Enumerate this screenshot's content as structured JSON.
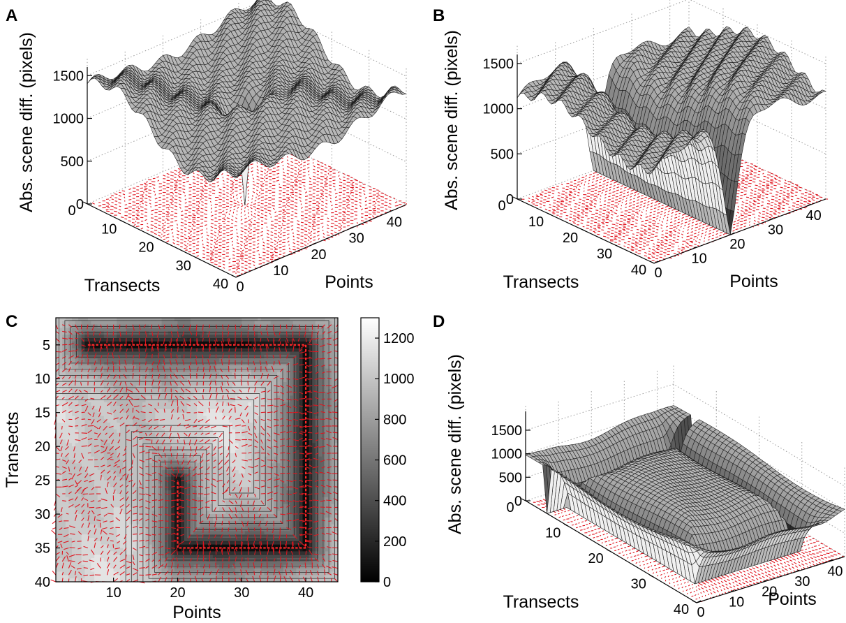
{
  "chart_data": [
    {
      "panel": "A",
      "type": "surface",
      "zlabel": "Abs. scene diff. (pixels)",
      "xlabel": "Transects",
      "ylabel": "Points",
      "x_ticks": [
        "0",
        "10",
        "20",
        "30",
        "40"
      ],
      "y_ticks": [
        "0",
        "10",
        "20",
        "30",
        "40"
      ],
      "z_ticks": [
        "0",
        "500",
        "1000",
        "1500"
      ],
      "xlim": [
        0,
        40
      ],
      "ylim": [
        0,
        45
      ],
      "zlim": [
        0,
        1600
      ],
      "surface": {
        "shape": "single funnel",
        "baseline": 1200,
        "min_value": 0,
        "min_at": {
          "transect": 20,
          "point": 22
        }
      },
      "quiver": "red arrows on the floor converging to the minimum"
    },
    {
      "panel": "B",
      "type": "surface",
      "zlabel": "Abs. scene diff. (pixels)",
      "xlabel": "Transects",
      "ylabel": "Points",
      "x_ticks": [
        "0",
        "10",
        "20",
        "30",
        "40"
      ],
      "y_ticks": [
        "0",
        "10",
        "20",
        "30",
        "40"
      ],
      "z_ticks": [
        "0",
        "500",
        "1000",
        "1500"
      ],
      "xlim": [
        0,
        40
      ],
      "ylim": [
        0,
        45
      ],
      "zlim": [
        0,
        1600
      ],
      "surface": {
        "shape": "linear trench",
        "baseline": 1100,
        "min_value": 0,
        "trench_at_point": 20
      },
      "quiver": "red arrows on the floor pointing toward the trench"
    },
    {
      "panel": "C",
      "type": "contour",
      "xlabel": "Points",
      "ylabel": "Transects",
      "x_ticks": [
        "10",
        "20",
        "30",
        "40"
      ],
      "y_ticks": [
        "5",
        "10",
        "15",
        "20",
        "25",
        "30",
        "35",
        "40"
      ],
      "xlim": [
        1,
        45
      ],
      "ylim": [
        1,
        40
      ],
      "colorbar": {
        "min": 0,
        "max": 1300,
        "ticks": [
          "0",
          "200",
          "400",
          "600",
          "800",
          "1000",
          "1200"
        ]
      },
      "route": [
        {
          "point": 6,
          "transect": 5
        },
        {
          "point": 40,
          "transect": 5
        },
        {
          "point": 40,
          "transect": 35
        },
        {
          "point": 20,
          "transect": 35
        },
        {
          "point": 20,
          "transect": 25
        }
      ]
    },
    {
      "panel": "D",
      "type": "surface",
      "zlabel": "Abs. scene diff. (pixels)",
      "xlabel": "Transects",
      "ylabel": "Points",
      "x_ticks": [
        "0",
        "10",
        "20",
        "30",
        "40"
      ],
      "y_ticks": [
        "0",
        "10",
        "20",
        "30",
        "40"
      ],
      "z_ticks": [
        "0",
        "500",
        "1000",
        "1500"
      ],
      "xlim": [
        0,
        40
      ],
      "ylim": [
        0,
        45
      ],
      "zlim": [
        0,
        1900
      ],
      "surface": {
        "shape": "square route trench",
        "baseline": 1000,
        "min_value": 0
      },
      "quiver": "red arrows on the floor pointing toward the route"
    }
  ]
}
